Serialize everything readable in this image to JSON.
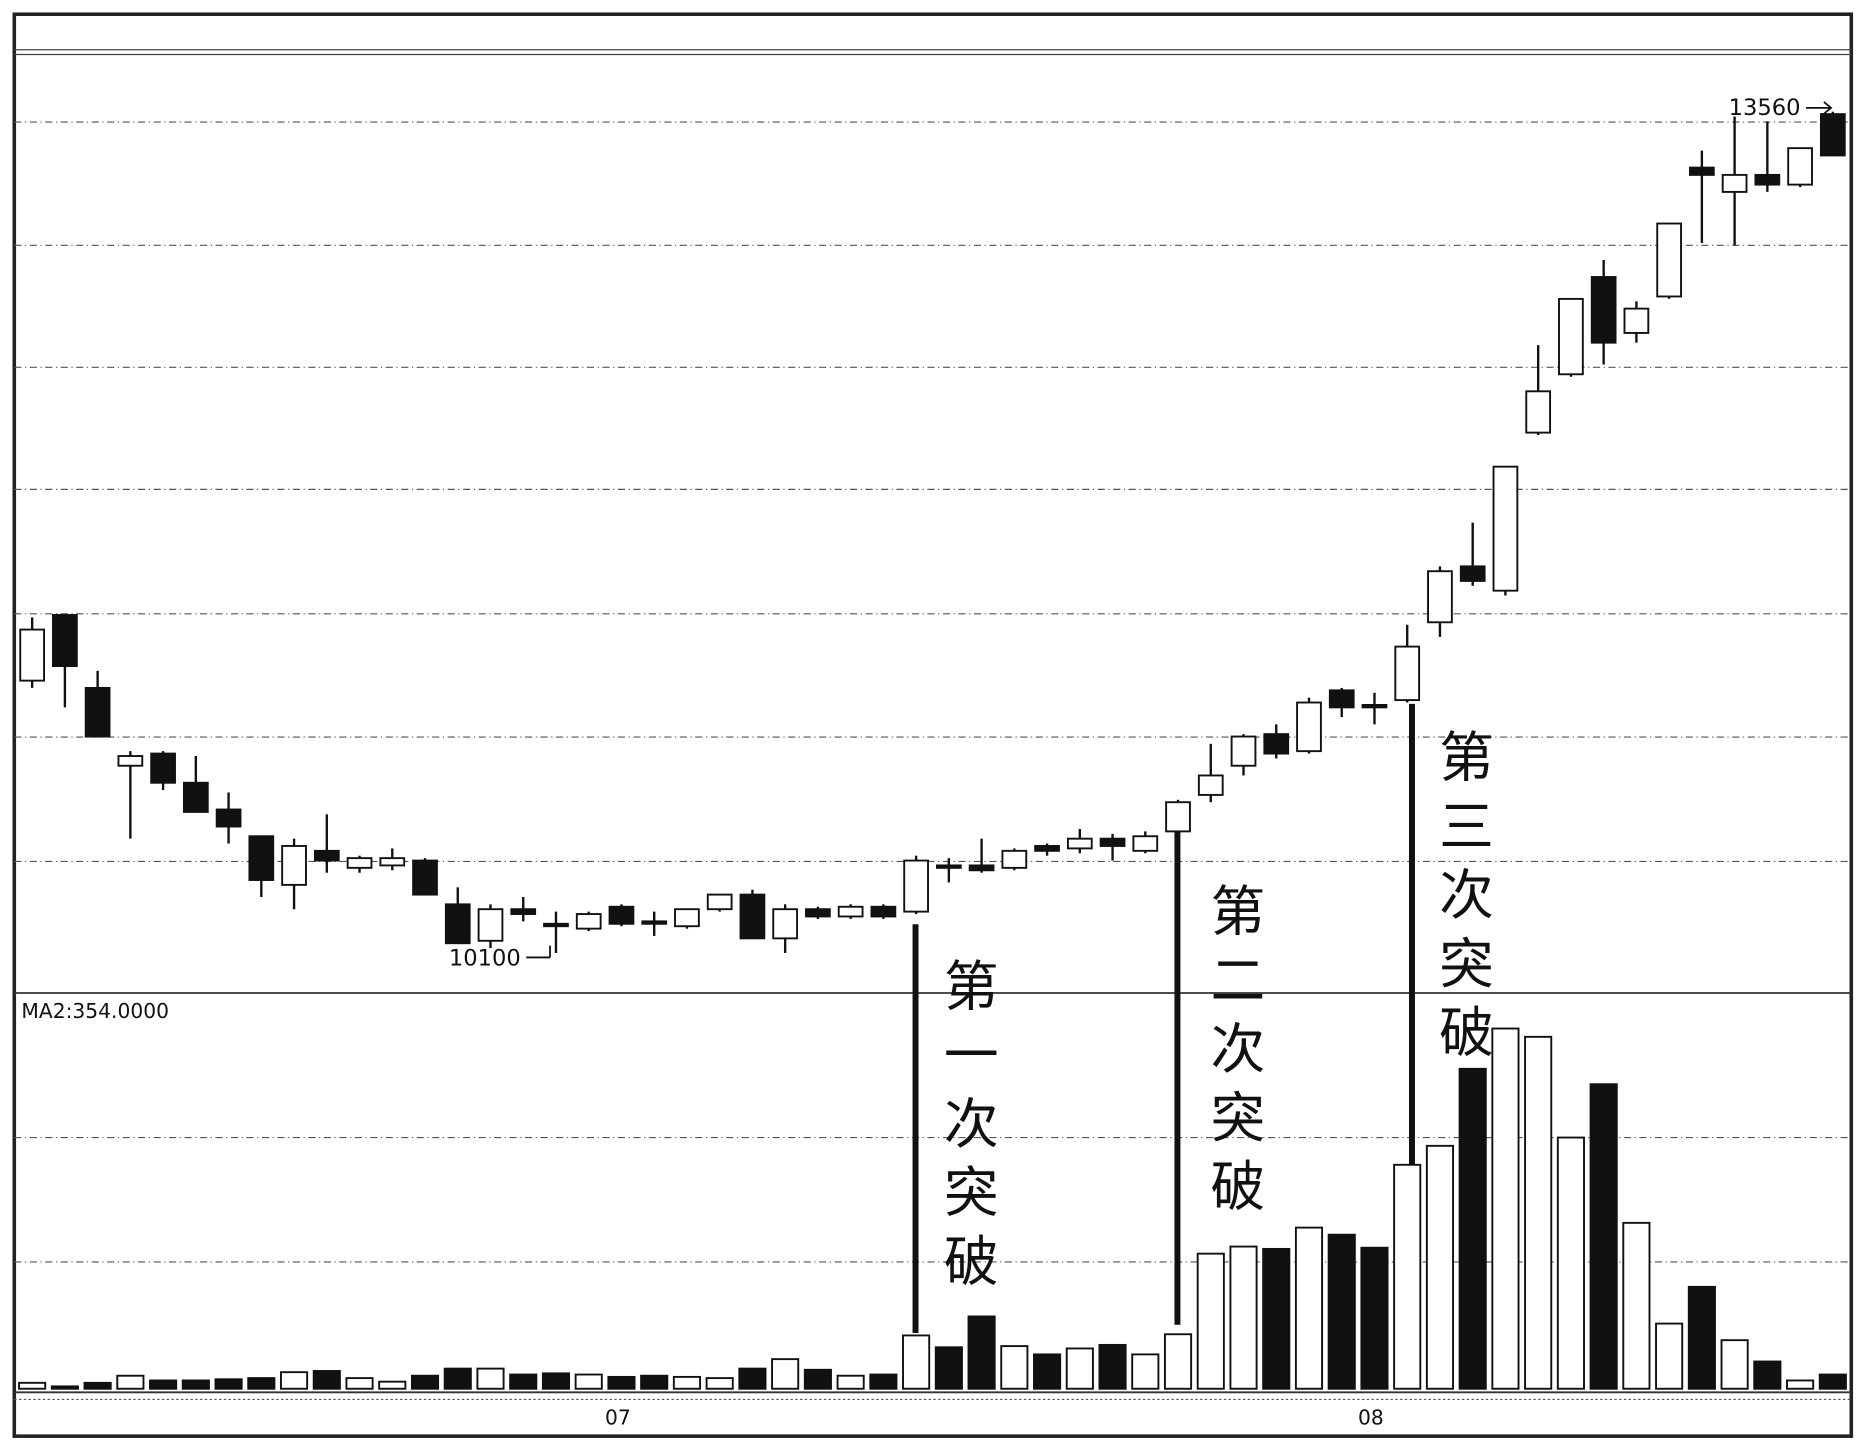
{
  "chart_data": {
    "type": "candlestick",
    "high_label": "13560",
    "low_label": "10100",
    "volume_label": "MA2:354.0000",
    "annotations": [
      "第一次突破",
      "第二次突破",
      "第三次突破"
    ],
    "categories": [
      null,
      null,
      null,
      null,
      null,
      null,
      null,
      null,
      null,
      null,
      null,
      null,
      null,
      null,
      null,
      null,
      null,
      null,
      "07",
      null,
      null,
      null,
      null,
      null,
      null,
      null,
      null,
      null,
      null,
      null,
      null,
      null,
      null,
      null,
      null,
      null,
      null,
      null,
      null,
      null,
      null,
      "08",
      null,
      null,
      null,
      null,
      null,
      null,
      null,
      null,
      null,
      null,
      null,
      null,
      null,
      null
    ],
    "open": [
      11220,
      11490,
      11190,
      10870,
      10920,
      10800,
      10690,
      10580,
      10380,
      10520,
      10450,
      10460,
      10480,
      10300,
      10150,
      10280,
      10220,
      10200,
      10290,
      10230,
      10210,
      10280,
      10340,
      10160,
      10280,
      10250,
      10290,
      10270,
      10460,
      10460,
      10450,
      10540,
      10530,
      10570,
      10520,
      10600,
      10750,
      10870,
      11000,
      10930,
      11180,
      11120,
      11140,
      11460,
      11690,
      11590,
      12240,
      12480,
      12880,
      12650,
      12800,
      13330,
      13230,
      13300,
      13260,
      13550
    ],
    "high": [
      11480,
      11490,
      11260,
      10930,
      10930,
      10910,
      10760,
      10580,
      10570,
      10670,
      10500,
      10530,
      10490,
      10370,
      10300,
      10330,
      10270,
      10270,
      10300,
      10270,
      10280,
      10340,
      10360,
      10300,
      10290,
      10300,
      10300,
      10500,
      10490,
      10570,
      10530,
      10550,
      10610,
      10590,
      10600,
      10730,
      10960,
      11000,
      11040,
      11150,
      11190,
      11170,
      11450,
      11690,
      11870,
      12100,
      12600,
      12790,
      12950,
      12780,
      13100,
      13400,
      13540,
      13520,
      13410,
      13560
    ],
    "low": [
      11190,
      11110,
      10990,
      10570,
      10770,
      10680,
      10550,
      10330,
      10280,
      10430,
      10430,
      10440,
      10340,
      10140,
      10120,
      10230,
      10100,
      10190,
      10210,
      10170,
      10200,
      10270,
      10160,
      10100,
      10240,
      10240,
      10240,
      10260,
      10390,
      10430,
      10440,
      10500,
      10510,
      10480,
      10510,
      10590,
      10720,
      10830,
      10900,
      10920,
      11070,
      11040,
      11130,
      11400,
      11610,
      11570,
      12230,
      12470,
      12520,
      12610,
      12790,
      13020,
      13010,
      13230,
      13250,
      13380
    ],
    "close": [
      11430,
      11280,
      10990,
      10910,
      10800,
      10680,
      10620,
      10400,
      10540,
      10480,
      10490,
      10490,
      10340,
      10140,
      10280,
      10260,
      10210,
      10260,
      10220,
      10220,
      10280,
      10340,
      10160,
      10280,
      10250,
      10290,
      10250,
      10480,
      10450,
      10440,
      10520,
      10520,
      10570,
      10540,
      10580,
      10720,
      10830,
      10990,
      10920,
      11130,
      11110,
      11110,
      11360,
      11670,
      11630,
      12100,
      12410,
      12790,
      12610,
      12750,
      13100,
      13300,
      13300,
      13260,
      13410,
      13380
    ],
    "volume": [
      50,
      20,
      50,
      110,
      70,
      70,
      80,
      90,
      140,
      150,
      90,
      60,
      110,
      170,
      170,
      120,
      130,
      120,
      100,
      110,
      100,
      90,
      170,
      250,
      160,
      110,
      120,
      450,
      350,
      610,
      360,
      290,
      340,
      370,
      290,
      460,
      1140,
      1200,
      1180,
      1360,
      1300,
      1190,
      1890,
      2050,
      2700,
      3040,
      2970,
      2120,
      2570,
      1400,
      550,
      860,
      410,
      230,
      70,
      120
    ],
    "ylim": [
      9950,
      13800
    ],
    "vlim": [
      0,
      3340
    ],
    "up_color": "#ffffff",
    "down_color": "#111111"
  }
}
